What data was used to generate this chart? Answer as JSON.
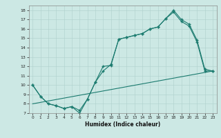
{
  "line1_x": [
    0,
    1,
    2,
    3,
    4,
    5,
    6,
    7,
    8,
    9,
    10,
    11,
    12,
    13,
    14,
    15,
    16,
    17,
    18,
    19,
    20,
    21,
    22,
    23
  ],
  "line1_y": [
    10,
    8.8,
    8.0,
    7.8,
    7.5,
    7.7,
    7.3,
    8.5,
    10.3,
    12.0,
    12.1,
    14.9,
    15.1,
    15.3,
    15.5,
    16.0,
    16.2,
    17.1,
    18.0,
    17.0,
    16.5,
    14.8,
    11.7,
    11.5
  ],
  "line2_x": [
    0,
    1,
    2,
    3,
    4,
    5,
    6,
    7,
    8,
    9,
    10,
    11,
    12,
    13,
    14,
    15,
    16,
    17,
    18,
    19,
    20,
    21,
    22,
    23
  ],
  "line2_y": [
    10,
    8.8,
    8.0,
    7.8,
    7.5,
    7.7,
    7.0,
    8.5,
    10.3,
    11.5,
    12.2,
    14.9,
    15.1,
    15.3,
    15.5,
    16.0,
    16.2,
    17.1,
    17.8,
    16.8,
    16.3,
    14.6,
    11.5,
    11.5
  ],
  "line3_x": [
    0,
    23
  ],
  "line3_y": [
    8.0,
    11.5
  ],
  "line_color": "#1a7a6e",
  "bg_color": "#cce8e4",
  "grid_color": "#aed0cc",
  "xlabel": "Humidex (Indice chaleur)",
  "xlim": [
    -0.5,
    23.5
  ],
  "ylim": [
    7,
    18.5
  ],
  "yticks": [
    7,
    8,
    9,
    10,
    11,
    12,
    13,
    14,
    15,
    16,
    17,
    18
  ],
  "xticks": [
    0,
    1,
    2,
    3,
    4,
    5,
    6,
    7,
    8,
    9,
    10,
    11,
    12,
    13,
    14,
    15,
    16,
    17,
    18,
    19,
    20,
    21,
    22,
    23
  ]
}
